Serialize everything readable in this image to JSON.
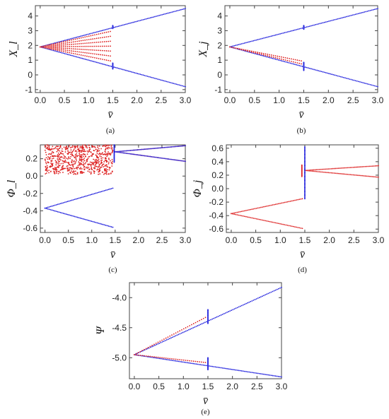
{
  "chart_data": [
    {
      "id": "a",
      "type": "scatter",
      "caption": "(a)",
      "xlabel": "v̄",
      "ylabel": "X_l",
      "xlim": [
        -0.1,
        3.0
      ],
      "ylim": [
        -1.2,
        4.7
      ],
      "xticks": [
        "0.0",
        "0.5",
        "1.0",
        "1.5",
        "2.0",
        "2.5",
        "3.0"
      ],
      "yticks": [
        "-1",
        "0",
        "1",
        "2",
        "3",
        "4"
      ],
      "series": [
        {
          "color": "#2222dd",
          "kind": "branches",
          "x_range": [
            0,
            3.0
          ],
          "lines": [
            {
              "y0": 1.9,
              "y1": 4.5
            },
            {
              "y0": 1.9,
              "y1": -0.8
            }
          ]
        },
        {
          "color": "#dd2222",
          "kind": "fan",
          "x_range": [
            0,
            1.45
          ],
          "y0": 1.9,
          "y_end_low": 0.95,
          "y_end_high": 2.95,
          "rows": 7
        },
        {
          "color": "#2222dd",
          "kind": "vline",
          "x": 1.5,
          "ranges": [
            [
              3.15,
              3.35
            ],
            [
              0.4,
              0.8
            ]
          ]
        }
      ]
    },
    {
      "id": "b",
      "type": "scatter",
      "caption": "(b)",
      "xlabel": "v̄",
      "ylabel": "X_j",
      "xlim": [
        -0.1,
        3.0
      ],
      "ylim": [
        -1.2,
        4.7
      ],
      "xticks": [
        "0.0",
        "0.5",
        "1.0",
        "1.5",
        "2.0",
        "2.5",
        "3.0"
      ],
      "yticks": [
        "-1",
        "0",
        "1",
        "2",
        "3",
        "4"
      ],
      "series": [
        {
          "color": "#2222dd",
          "kind": "branches",
          "x_range": [
            0,
            3.0
          ],
          "lines": [
            {
              "y0": 1.9,
              "y1": 4.5
            },
            {
              "y0": 1.9,
              "y1": -0.8
            }
          ]
        },
        {
          "color": "#dd2222",
          "kind": "fan",
          "x_range": [
            0,
            1.45
          ],
          "y0": 1.9,
          "y_end_low": 0.75,
          "y_end_high": 0.95,
          "rows": 2
        },
        {
          "color": "#2222dd",
          "kind": "vline",
          "x": 1.5,
          "ranges": [
            [
              3.1,
              3.35
            ],
            [
              0.3,
              0.85
            ]
          ]
        }
      ]
    },
    {
      "id": "c",
      "type": "scatter",
      "caption": "(c)",
      "xlabel": "v̄",
      "ylabel": "Φ_l",
      "xlim": [
        -0.1,
        3.0
      ],
      "ylim": [
        -0.65,
        0.36
      ],
      "xticks": [
        "0.0",
        "0.5",
        "1.0",
        "1.5",
        "2.0",
        "2.5",
        "3.0"
      ],
      "yticks": [
        "-0.6",
        "-0.4",
        "-0.2",
        "0.0",
        "0.2"
      ],
      "series": [
        {
          "color": "#2222dd",
          "kind": "branches",
          "x_range": [
            0,
            1.45
          ],
          "lines": [
            {
              "y0": -0.37,
              "y1": -0.14
            },
            {
              "y0": -0.37,
              "y1": -0.59
            }
          ]
        },
        {
          "color": "#dd2222",
          "kind": "cloud",
          "x_range": [
            0,
            1.45
          ],
          "y_range": [
            0.02,
            0.36
          ]
        },
        {
          "color": "#dd2222",
          "kind": "branches",
          "x_range": [
            1.5,
            3.0
          ],
          "lines": [
            {
              "y0": 0.28,
              "y1": 0.35
            },
            {
              "y0": 0.28,
              "y1": 0.17
            }
          ]
        },
        {
          "color": "#2222dd",
          "kind": "branches",
          "x_range": [
            1.5,
            3.0
          ],
          "lines": [
            {
              "y0": 0.28,
              "y1": 0.35
            },
            {
              "y0": 0.28,
              "y1": 0.17
            }
          ]
        },
        {
          "color": "#2222dd",
          "kind": "vline",
          "x": 1.48,
          "ranges": [
            [
              0.16,
              0.36
            ]
          ]
        }
      ]
    },
    {
      "id": "d",
      "type": "scatter",
      "caption": "(d)",
      "xlabel": "v̄",
      "ylabel": "Φ_j",
      "xlim": [
        -0.1,
        3.0
      ],
      "ylim": [
        -0.65,
        0.65
      ],
      "xticks": [
        "0.0",
        "0.5",
        "1.0",
        "1.5",
        "2.0",
        "2.5",
        "3.0"
      ],
      "yticks": [
        "-0.6",
        "-0.4",
        "-0.2",
        "0.0",
        "0.2",
        "0.4",
        "0.6"
      ],
      "series": [
        {
          "color": "#dd2222",
          "kind": "branches",
          "x_range": [
            0,
            1.45
          ],
          "lines": [
            {
              "y0": -0.37,
              "y1": -0.15
            },
            {
              "y0": -0.37,
              "y1": -0.59
            }
          ]
        },
        {
          "color": "#dd2222",
          "kind": "branches",
          "x_range": [
            1.5,
            3.0
          ],
          "lines": [
            {
              "y0": 0.27,
              "y1": 0.34
            },
            {
              "y0": 0.27,
              "y1": 0.17
            }
          ]
        },
        {
          "color": "#dd2222",
          "kind": "vline",
          "x": 1.44,
          "ranges": [
            [
              0.18,
              0.35
            ]
          ]
        },
        {
          "color": "#2222dd",
          "kind": "vline",
          "x": 1.5,
          "ranges": [
            [
              -0.15,
              0.62
            ]
          ]
        }
      ]
    },
    {
      "id": "e",
      "type": "scatter",
      "caption": "(e)",
      "xlabel": "v̄",
      "ylabel": "Ψ",
      "xlim": [
        -0.1,
        3.0
      ],
      "ylim": [
        -5.35,
        -3.75
      ],
      "xticks": [
        "0.0",
        "0.5",
        "1.0",
        "1.5",
        "2.0",
        "2.5",
        "3.0"
      ],
      "yticks": [
        "-5.0",
        "-4.5",
        "-4.0"
      ],
      "series": [
        {
          "color": "#2222dd",
          "kind": "branches",
          "x_range": [
            0,
            3.0
          ],
          "lines": [
            {
              "y0": -4.95,
              "y1": -3.83
            },
            {
              "y0": -4.95,
              "y1": -5.32
            }
          ]
        },
        {
          "color": "#dd2222",
          "kind": "fan",
          "x_range": [
            0,
            1.45
          ],
          "y0": -4.95,
          "y_end_low": -5.08,
          "y_end_high": -4.33,
          "rows": 2
        },
        {
          "color": "#2222dd",
          "kind": "vline",
          "x": 1.5,
          "ranges": [
            [
              -4.43,
              -4.2
            ],
            [
              -5.2,
              -5.0
            ]
          ]
        }
      ]
    }
  ]
}
